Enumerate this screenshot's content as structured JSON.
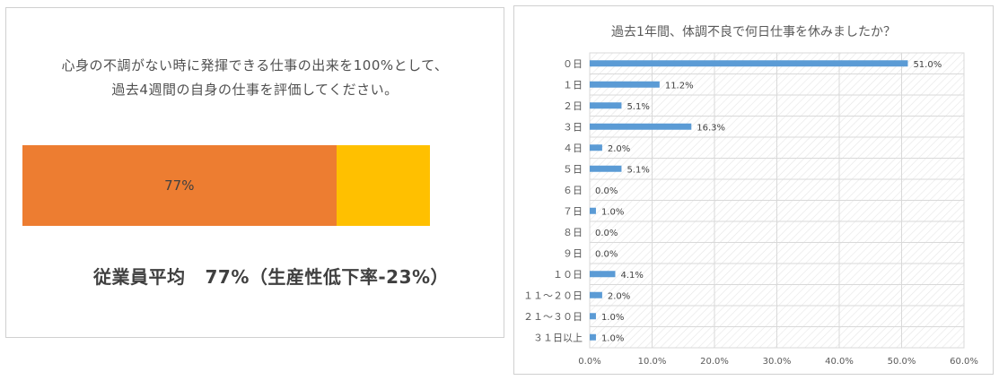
{
  "left": {
    "question_line1": "心身の不調がない時に発揮できる仕事の出来を100%として、",
    "question_line2": "過去4週間の自身の仕事を評価してください。",
    "bar_label": "77%",
    "summary_label": "従業員平均",
    "summary_value": "77%（生産性低下率-23%）",
    "colors": {
      "score": "#ed7d31",
      "remainder": "#ffc000"
    }
  },
  "chart_data": {
    "type": "bar",
    "orientation": "horizontal",
    "title": "過去1年間、体調不良で何日仕事を休みましたか？",
    "categories": [
      "０日",
      "１日",
      "２日",
      "３日",
      "４日",
      "５日",
      "６日",
      "７日",
      "８日",
      "９日",
      "１０日",
      "１１～２０日",
      "２１～３０日",
      "３１日以上"
    ],
    "values": [
      51.0,
      11.2,
      5.1,
      16.3,
      2.0,
      5.1,
      0.0,
      1.0,
      0.0,
      0.0,
      4.1,
      2.0,
      1.0,
      1.0
    ],
    "value_labels": [
      "51.0%",
      "11.2%",
      "5.1%",
      "16.3%",
      "2.0%",
      "5.1%",
      "0.0%",
      "1.0%",
      "0.0%",
      "0.0%",
      "4.1%",
      "2.0%",
      "1.0%",
      "1.0%"
    ],
    "xlim": [
      0,
      60
    ],
    "x_ticks": [
      0,
      10,
      20,
      30,
      40,
      50,
      60
    ],
    "x_tick_labels": [
      "0.0%",
      "10.0%",
      "20.0%",
      "30.0%",
      "40.0%",
      "50.0%",
      "60.0%"
    ],
    "bar_color": "#5b9bd5",
    "grid": true,
    "legend": "none"
  },
  "stacked": [
    {
      "name": "score",
      "value": 77
    },
    {
      "name": "remainder",
      "value": 23
    }
  ]
}
